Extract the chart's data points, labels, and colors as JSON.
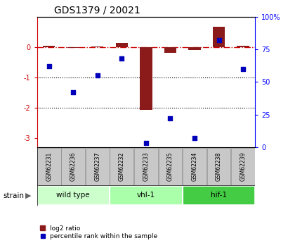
{
  "title": "GDS1379 / 20021",
  "samples": [
    "GSM62231",
    "GSM62236",
    "GSM62237",
    "GSM62232",
    "GSM62233",
    "GSM62235",
    "GSM62234",
    "GSM62238",
    "GSM62239"
  ],
  "log2_ratio": [
    0.05,
    -0.02,
    0.03,
    0.15,
    -2.08,
    -0.18,
    -0.08,
    0.68,
    0.05
  ],
  "percentile_rank": [
    62,
    42,
    55,
    68,
    3,
    22,
    7,
    82,
    60
  ],
  "ylim_left": [
    -3.3,
    1.0
  ],
  "ylim_right": [
    0,
    100
  ],
  "yticks_left": [
    -3,
    -2,
    -1,
    0
  ],
  "ytick_labels_left": [
    "-3",
    "-2",
    "-1",
    "0"
  ],
  "yticks_right": [
    0,
    25,
    50,
    75,
    100
  ],
  "ytick_labels_right": [
    "0",
    "25",
    "50",
    "75",
    "100%"
  ],
  "dotted_lines": [
    -1,
    -2
  ],
  "groups": [
    {
      "label": "wild type",
      "start": 0,
      "end": 3
    },
    {
      "label": "vhl-1",
      "start": 3,
      "end": 6
    },
    {
      "label": "hif-1",
      "start": 6,
      "end": 9
    }
  ],
  "group_colors": [
    "#ccffcc",
    "#aaffaa",
    "#44cc44"
  ],
  "bar_color": "#8b1a1a",
  "dot_color": "#0000bb",
  "bar_width": 0.5,
  "dot_size": 22,
  "strain_label": "strain",
  "legend_bar_label": "log2 ratio",
  "legend_dot_label": "percentile rank within the sample",
  "sample_bg": "#c8c8c8",
  "sample_border": "#888888"
}
